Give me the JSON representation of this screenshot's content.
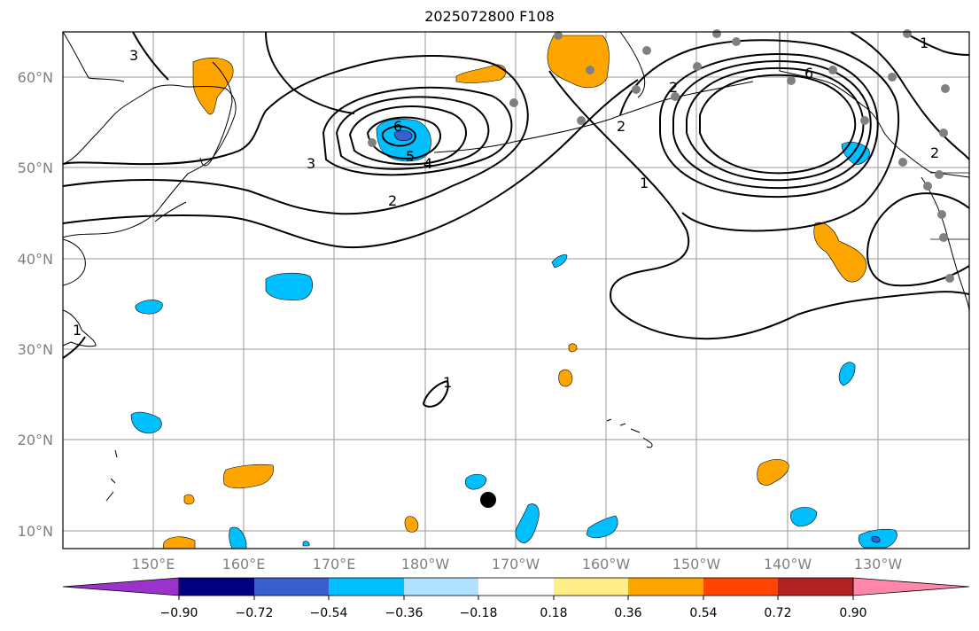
{
  "title": "2025072800 F108",
  "lat_labels": [
    "60°N",
    "50°N",
    "40°N",
    "30°N",
    "20°N",
    "10°N"
  ],
  "lon_labels": [
    "150°E",
    "160°E",
    "170°E",
    "180°W",
    "170°W",
    "160°W",
    "150°W",
    "140°W",
    "130°W"
  ],
  "contour_labels": [
    "3",
    "6",
    "5",
    "4",
    "3",
    "2",
    "2",
    "1",
    "2",
    "6",
    "2",
    "1",
    "1",
    "1"
  ],
  "colorbar": {
    "tick_labels": [
      "−0.90",
      "−0.72",
      "−0.54",
      "−0.36",
      "−0.18",
      "0.18",
      "0.36",
      "0.54",
      "0.72",
      "0.90"
    ],
    "colors": [
      "#9933cc",
      "#000080",
      "#3a5fcd",
      "#00bfff",
      "#b0e2ff",
      "#ffffff",
      "#ffee88",
      "#ffa500",
      "#ff4500",
      "#b22222",
      "#ff88aa",
      "#ff88aa"
    ]
  },
  "colors": {
    "positive_fill": "#ffa500",
    "negative_fill": "#00bfff",
    "strong_negative": "#3a5fcd",
    "station_dot": "#808080"
  }
}
